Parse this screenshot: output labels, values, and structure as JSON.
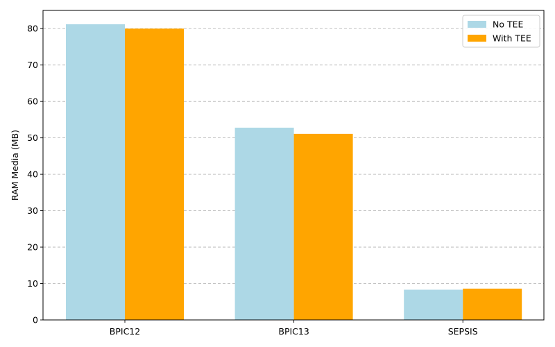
{
  "chart_data": {
    "type": "bar",
    "title": "",
    "xlabel": "",
    "ylabel": "RAM Media (MB)",
    "categories": [
      "BPIC12",
      "BPIC13",
      "SEPSIS"
    ],
    "series": [
      {
        "name": "No TEE",
        "color": "#add8e6",
        "values": [
          81.2,
          52.8,
          8.3
        ]
      },
      {
        "name": "With TEE",
        "color": "#ffa500",
        "values": [
          80.0,
          51.1,
          8.6
        ]
      }
    ],
    "ylim": [
      0,
      85
    ],
    "yticks": [
      0,
      10,
      20,
      30,
      40,
      50,
      60,
      70,
      80
    ],
    "grid": "y-dashed",
    "legend_position": "top-right"
  }
}
